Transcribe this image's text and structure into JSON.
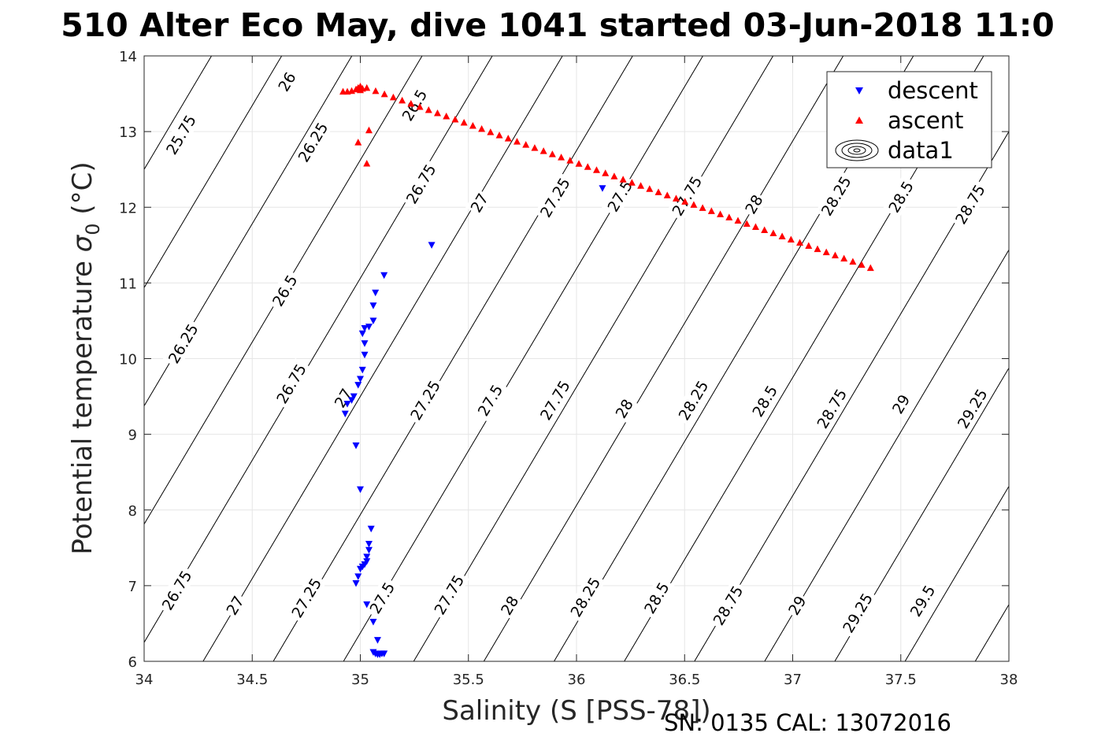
{
  "chart_data": {
    "type": "scatter",
    "title": "510 Alter Eco May, dive 1041 started 03-Jun-2018 11:0",
    "xlabel": "Salinity (S [PSS-78])",
    "ylabel_main": "Potential temperature ",
    "ylabel_symbol": "σ",
    "ylabel_sub": "0",
    "ylabel_unit": " (°C)",
    "xlim": [
      34,
      38
    ],
    "ylim": [
      6,
      14
    ],
    "grid": true,
    "x_ticks": [
      "34",
      "34.5",
      "35",
      "35.5",
      "36",
      "36.5",
      "37",
      "37.5",
      "38"
    ],
    "y_ticks": [
      "6",
      "7",
      "8",
      "9",
      "10",
      "11",
      "12",
      "13",
      "14"
    ],
    "legend_position": "top-right",
    "legend": [
      {
        "name": "descent",
        "marker": "triangle-down",
        "color": "#0000ff"
      },
      {
        "name": "ascent",
        "marker": "triangle-up",
        "color": "#ff0000"
      },
      {
        "name": "data1",
        "marker": "contour",
        "color": "#000000"
      }
    ],
    "series": [
      {
        "name": "descent",
        "color": "#0000ff",
        "marker": "triangle-down",
        "points": [
          [
            36.12,
            12.25
          ],
          [
            35.33,
            11.5
          ],
          [
            35.11,
            11.1
          ],
          [
            35.07,
            10.87
          ],
          [
            35.06,
            10.7
          ],
          [
            35.06,
            10.5
          ],
          [
            35.04,
            10.42
          ],
          [
            35.02,
            10.4
          ],
          [
            35.01,
            10.33
          ],
          [
            35.02,
            10.2
          ],
          [
            35.02,
            10.05
          ],
          [
            35.01,
            9.85
          ],
          [
            35.0,
            9.73
          ],
          [
            34.99,
            9.65
          ],
          [
            34.97,
            9.5
          ],
          [
            34.96,
            9.45
          ],
          [
            34.94,
            9.4
          ],
          [
            34.93,
            9.27
          ],
          [
            34.98,
            8.85
          ],
          [
            35.0,
            8.27
          ],
          [
            35.05,
            7.75
          ],
          [
            35.04,
            7.55
          ],
          [
            35.04,
            7.47
          ],
          [
            35.03,
            7.38
          ],
          [
            35.03,
            7.32
          ],
          [
            35.02,
            7.28
          ],
          [
            35.01,
            7.25
          ],
          [
            35.0,
            7.22
          ],
          [
            34.99,
            7.12
          ],
          [
            34.98,
            7.03
          ],
          [
            35.03,
            6.75
          ],
          [
            35.06,
            6.52
          ],
          [
            35.08,
            6.28
          ],
          [
            35.06,
            6.12
          ],
          [
            35.07,
            6.1
          ],
          [
            35.08,
            6.09
          ],
          [
            35.09,
            6.09
          ],
          [
            35.1,
            6.1
          ],
          [
            35.11,
            6.1
          ]
        ]
      },
      {
        "name": "ascent",
        "color": "#ff0000",
        "marker": "triangle-up",
        "start": [
          35.03,
          13.58
        ],
        "end": [
          37.36,
          11.2
        ],
        "count": 58,
        "extra_points": [
          [
            34.92,
            13.53
          ],
          [
            34.94,
            13.53
          ],
          [
            34.96,
            13.54
          ],
          [
            34.98,
            13.56
          ],
          [
            34.99,
            13.58
          ],
          [
            35.0,
            13.6
          ],
          [
            35.01,
            13.57
          ],
          [
            35.0,
            13.55
          ],
          [
            35.04,
            13.02
          ],
          [
            34.99,
            12.86
          ],
          [
            35.03,
            12.58
          ]
        ]
      }
    ],
    "contour_lines": {
      "s_ref": 35,
      "t_ref": 10,
      "sigma_ref": 26.92,
      "beta": 0.77,
      "alpha": 0.16,
      "levels": [
        24.25,
        24.5,
        24.75,
        25,
        25.25,
        25.5,
        25.75,
        26,
        26.25,
        26.5,
        26.75,
        27,
        27.25,
        27.5,
        27.75,
        28,
        28.25,
        28.5,
        28.75,
        29,
        29.25,
        29.5,
        29.75,
        30
      ]
    },
    "contour_labels": [
      {
        "text": "26",
        "s": 34.66,
        "t": 13.66
      },
      {
        "text": "25.75",
        "s": 34.17,
        "t": 12.96
      },
      {
        "text": "26.25",
        "s": 34.78,
        "t": 12.86
      },
      {
        "text": "26.5",
        "s": 35.25,
        "t": 13.35
      },
      {
        "text": "26.75",
        "s": 35.28,
        "t": 12.31
      },
      {
        "text": "27",
        "s": 35.55,
        "t": 12.06
      },
      {
        "text": "27.25",
        "s": 35.9,
        "t": 12.13
      },
      {
        "text": "27.5",
        "s": 36.2,
        "t": 12.15
      },
      {
        "text": "27.75",
        "s": 36.51,
        "t": 12.15
      },
      {
        "text": "28",
        "s": 36.82,
        "t": 12.04
      },
      {
        "text": "28.25",
        "s": 37.2,
        "t": 12.15
      },
      {
        "text": "28.5",
        "s": 37.5,
        "t": 12.14
      },
      {
        "text": "28.75",
        "s": 37.82,
        "t": 12.04
      },
      {
        "text": "26.5",
        "s": 34.65,
        "t": 10.9
      },
      {
        "text": "26.25",
        "s": 34.18,
        "t": 10.2
      },
      {
        "text": "26.75",
        "s": 34.68,
        "t": 9.67
      },
      {
        "text": "27",
        "s": 34.92,
        "t": 9.48
      },
      {
        "text": "27.25",
        "s": 35.3,
        "t": 9.45
      },
      {
        "text": "27.5",
        "s": 35.6,
        "t": 9.45
      },
      {
        "text": "27.75",
        "s": 35.9,
        "t": 9.45
      },
      {
        "text": "28",
        "s": 36.22,
        "t": 9.34
      },
      {
        "text": "28.25",
        "s": 36.54,
        "t": 9.45
      },
      {
        "text": "28.5",
        "s": 36.87,
        "t": 9.44
      },
      {
        "text": "28.75",
        "s": 37.18,
        "t": 9.34
      },
      {
        "text": "29",
        "s": 37.5,
        "t": 9.4
      },
      {
        "text": "29.25",
        "s": 37.83,
        "t": 9.34
      },
      {
        "text": "26.75",
        "s": 34.15,
        "t": 6.94
      },
      {
        "text": "27",
        "s": 34.42,
        "t": 6.74
      },
      {
        "text": "27.25",
        "s": 34.75,
        "t": 6.84
      },
      {
        "text": "27.5",
        "s": 35.1,
        "t": 6.84
      },
      {
        "text": "27.75",
        "s": 35.41,
        "t": 6.88
      },
      {
        "text": "28",
        "s": 35.69,
        "t": 6.74
      },
      {
        "text": "28.25",
        "s": 36.04,
        "t": 6.85
      },
      {
        "text": "28.5",
        "s": 36.37,
        "t": 6.84
      },
      {
        "text": "28.75",
        "s": 36.7,
        "t": 6.74
      },
      {
        "text": "29",
        "s": 37.02,
        "t": 6.74
      },
      {
        "text": "29.25",
        "s": 37.3,
        "t": 6.64
      },
      {
        "text": "29.5",
        "s": 37.6,
        "t": 6.8
      }
    ]
  },
  "footer": {
    "serial": "SN: 0135  CAL: 13072016"
  }
}
